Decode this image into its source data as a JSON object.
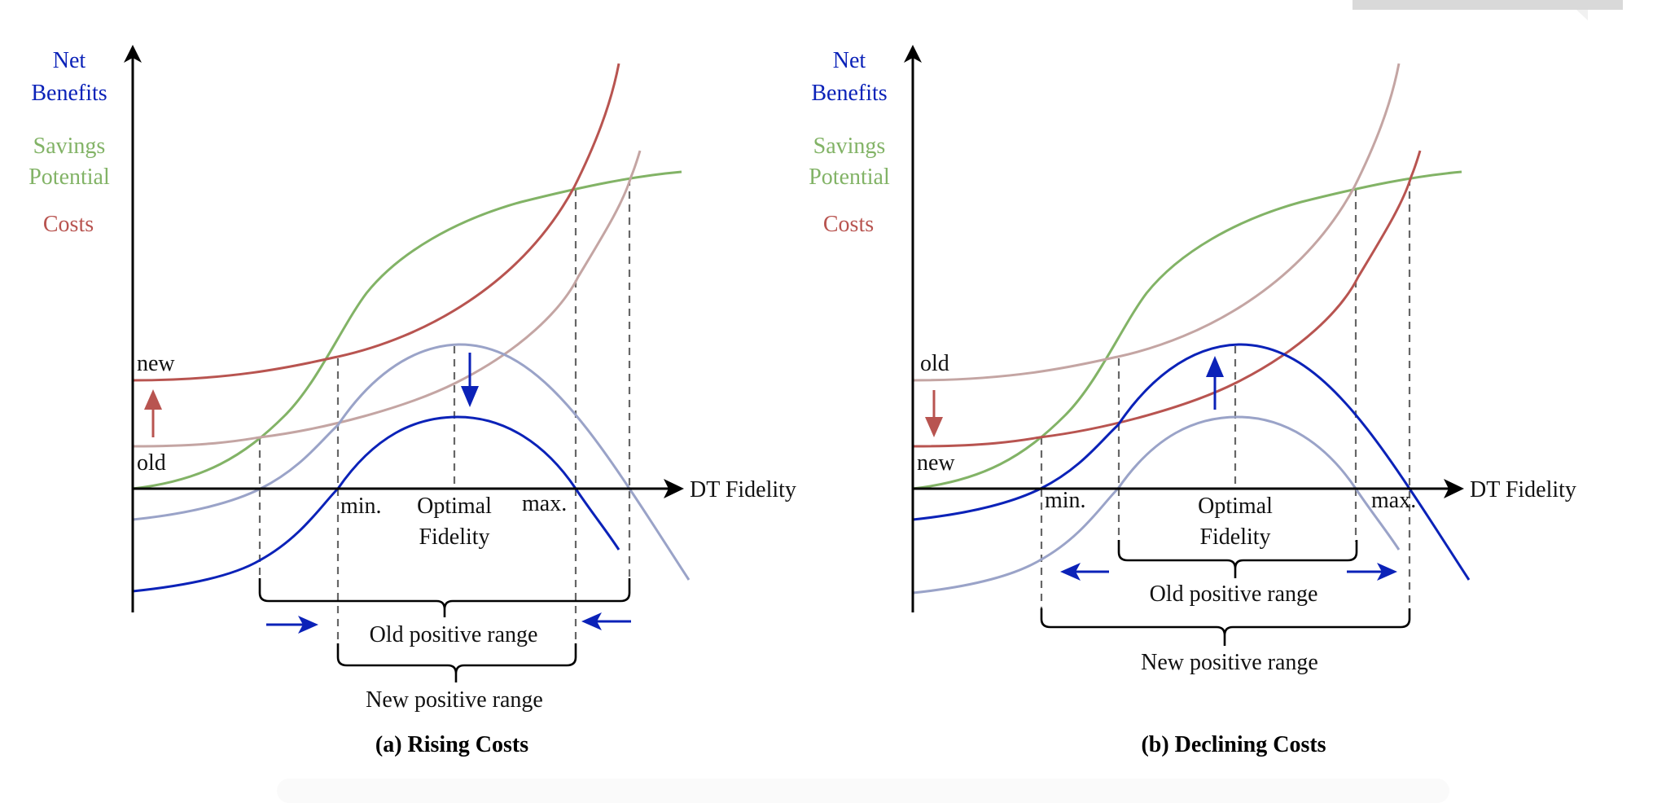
{
  "colors": {
    "net_benefits": "#0b22b8",
    "net_benefits_old": "#9aa3c8",
    "savings": "#82b366",
    "costs": "#b85450",
    "costs_old": "#c4a5a3",
    "axis": "#000000",
    "dashed": "#666666"
  },
  "panels": [
    {
      "id": "a",
      "caption": "(a) Rising Costs",
      "y_axis_labels": {
        "net_benefits": [
          "Net",
          "Benefits"
        ],
        "savings": [
          "Savings",
          "Potential"
        ],
        "costs": "Costs"
      },
      "x_axis_label": "DT Fidelity",
      "cost_labels": {
        "upper": "new",
        "lower": "old"
      },
      "cost_shift": "up",
      "net_benefit_shift": "down",
      "markers": {
        "min": "min.",
        "optimal": [
          "Optimal",
          "Fidelity"
        ],
        "max": "max."
      },
      "ranges": {
        "outer": "Old positive range",
        "inner": "New positive range"
      }
    },
    {
      "id": "b",
      "caption": "(b) Declining Costs",
      "y_axis_labels": {
        "net_benefits": [
          "Net",
          "Benefits"
        ],
        "savings": [
          "Savings",
          "Potential"
        ],
        "costs": "Costs"
      },
      "x_axis_label": "DT Fidelity",
      "cost_labels": {
        "upper": "old",
        "lower": "new"
      },
      "cost_shift": "down",
      "net_benefit_shift": "up",
      "markers": {
        "min": "min.",
        "optimal": [
          "Optimal",
          "Fidelity"
        ],
        "max": "max."
      },
      "ranges": {
        "inner": "Old positive range",
        "outer": "New positive range"
      }
    }
  ]
}
